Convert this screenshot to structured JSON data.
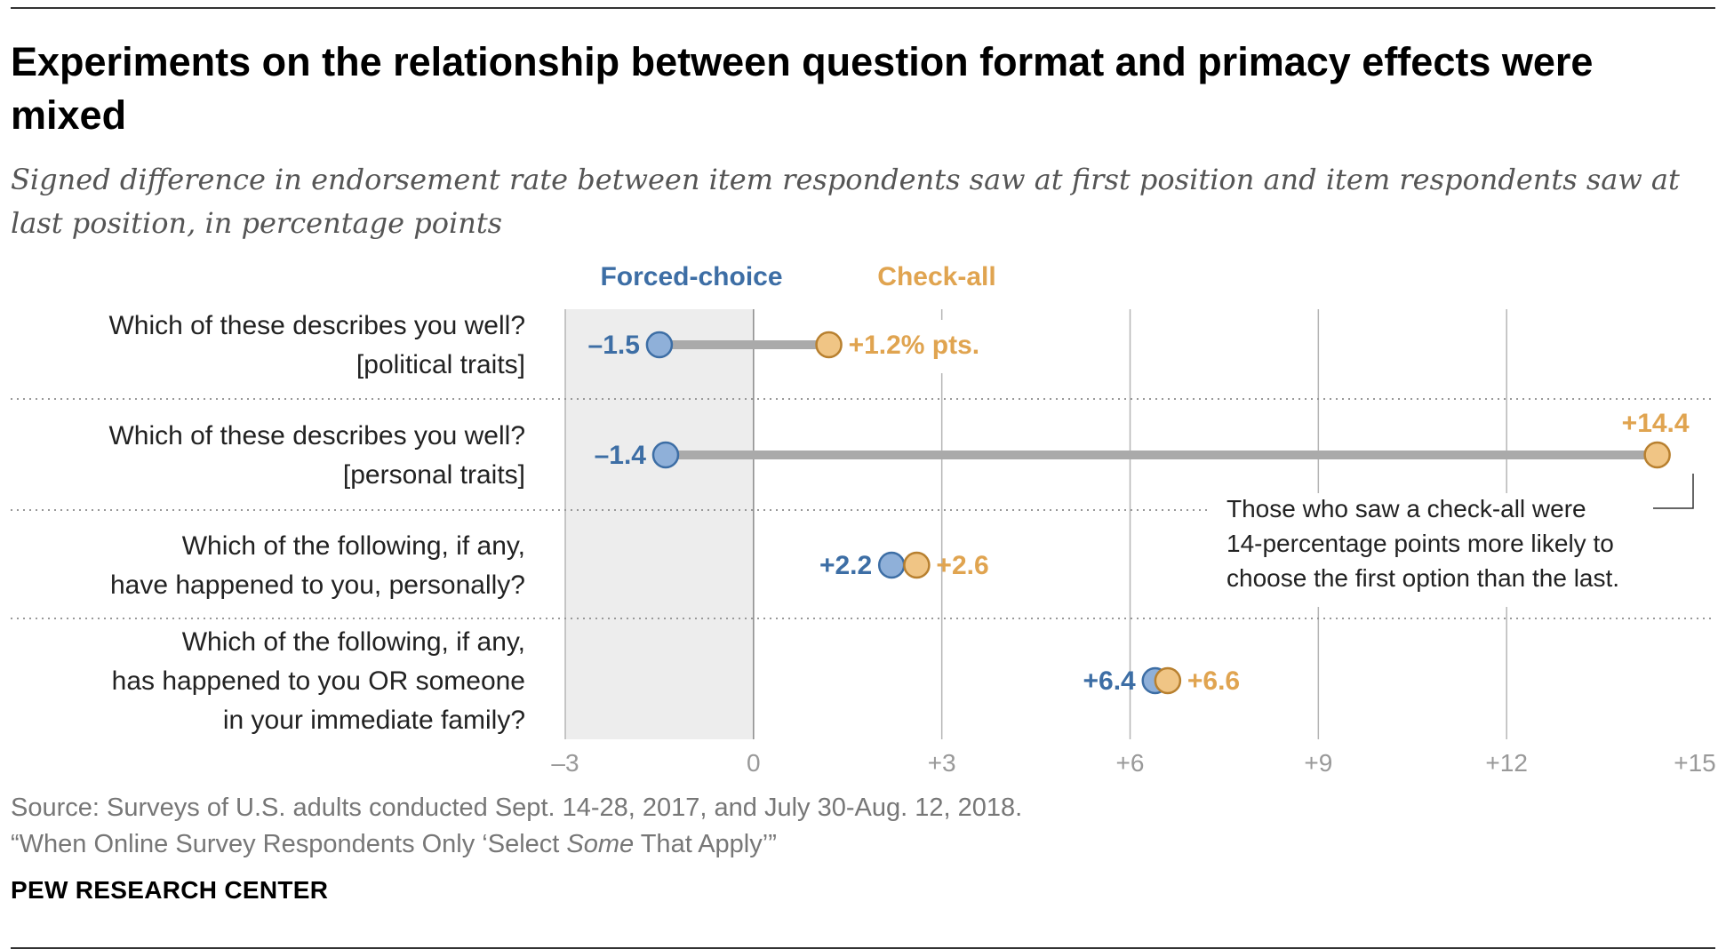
{
  "title": "Experiments on the relationship between question format and primacy effects were mixed",
  "subtitle": "Signed difference in endorsement rate between item respondents saw at first position and item respondents saw at last position, in percentage points",
  "source": "Source: Surveys of U.S. adults conducted Sept. 14-28, 2017, and July 30-Aug. 12, 2018.",
  "report_pre": "“When Online Survey Respondents Only ‘Select ",
  "report_em": "Some",
  "report_post": " That Apply’”",
  "brand": "PEW RESEARCH CENTER",
  "chart_data": {
    "type": "dot",
    "xlim": [
      -3,
      15
    ],
    "x_ticks": [
      -3,
      0,
      3,
      6,
      9,
      12,
      15
    ],
    "x_tick_labels": [
      "–3",
      "0",
      "+3",
      "+6",
      "+9",
      "+12",
      "+15"
    ],
    "shaded_region": [
      -3,
      0
    ],
    "grid": true,
    "legend": {
      "placement": "top",
      "entries": [
        "Forced-choice",
        "Check-all"
      ]
    },
    "colors": {
      "forced_choice": "#3d6ea5",
      "check_all": "#e0a450",
      "forced_fill": "#8fb0d9",
      "check_fill": "#f0c585",
      "connector": "#aaaaaa"
    },
    "rows": [
      {
        "label": [
          "Which of these describes you well?",
          "[political traits]"
        ],
        "forced_choice": -1.5,
        "check_all": 1.2,
        "forced_label": "–1.5",
        "check_label": "+1.2% pts."
      },
      {
        "label": [
          "Which of these describes you well?",
          "[personal traits]"
        ],
        "forced_choice": -1.4,
        "check_all": 14.4,
        "forced_label": "–1.4",
        "check_label": "+14.4"
      },
      {
        "label": [
          "Which of the following, if any,",
          "have happened to you, personally?"
        ],
        "forced_choice": 2.2,
        "check_all": 2.6,
        "forced_label": "+2.2",
        "check_label": "+2.6"
      },
      {
        "label": [
          "Which of the following, if any,",
          "has happened to you OR someone",
          "in your immediate family?"
        ],
        "forced_choice": 6.4,
        "check_all": 6.6,
        "forced_label": "+6.4",
        "check_label": "+6.6"
      }
    ],
    "annotation": {
      "lines": [
        "Those who saw a check-all were",
        "14-percentage points more likely to",
        "choose the first option than the last."
      ],
      "row": 1
    }
  }
}
